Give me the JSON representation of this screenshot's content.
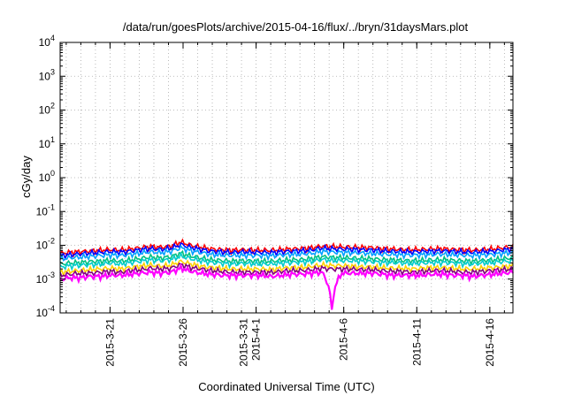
{
  "chart_data": {
    "type": "line",
    "title": "/data/run/goesPlots/archive/2015-04-16/flux/../bryn/31daysMars.plot",
    "xlabel": "Coordinated Universal Time (UTC)",
    "ylabel": "cGy/day",
    "yscale": "log",
    "ylim": [
      0.0001,
      10000
    ],
    "xlim": [
      "2015-03-17T14:00",
      "2015-04-17T14:00"
    ],
    "grid": true,
    "y_ticks": [
      {
        "base": "10",
        "exp": "-4"
      },
      {
        "base": "10",
        "exp": "-3"
      },
      {
        "base": "10",
        "exp": "-2"
      },
      {
        "base": "10",
        "exp": "-1"
      },
      {
        "base": "10",
        "exp": "0"
      },
      {
        "base": "10",
        "exp": "1"
      },
      {
        "base": "10",
        "exp": "2"
      },
      {
        "base": "10",
        "exp": "3"
      },
      {
        "base": "10",
        "exp": "4"
      }
    ],
    "x_ticks": [
      {
        "date": "2015-03-21",
        "lines": [
          "2015-3-21"
        ]
      },
      {
        "date": "2015-03-26",
        "lines": [
          "2015-3-26"
        ]
      },
      {
        "date": "2015-03-31",
        "lines": [
          "2015-3-31",
          "2015-4-1"
        ]
      },
      {
        "date": "2015-04-06",
        "lines": [
          "2015-4-6"
        ]
      },
      {
        "date": "2015-04-11",
        "lines": [
          "2015-4-11"
        ]
      },
      {
        "date": "2015-04-16",
        "lines": [
          "2015-4-16"
        ]
      }
    ],
    "series": [
      {
        "color": "#ff0000",
        "values": [
          0.0058,
          0.0062,
          0.0065,
          0.0068,
          0.0072,
          0.0075,
          0.0072,
          0.0078,
          0.0085,
          0.0092,
          0.0088,
          0.0095,
          0.0125,
          0.01,
          0.0088,
          0.0078,
          0.0075,
          0.0072,
          0.0074,
          0.0073,
          0.0072,
          0.0071,
          0.0075,
          0.0078,
          0.008,
          0.0085,
          0.0095,
          0.0092,
          0.009,
          0.0088,
          0.0086,
          0.0085,
          0.008,
          0.0078,
          0.0076,
          0.0074,
          0.0076,
          0.0078,
          0.008,
          0.0076,
          0.0074,
          0.0072,
          0.0075,
          0.0078,
          0.0085,
          0.009
        ]
      },
      {
        "color": "#0000ff",
        "values": [
          0.005,
          0.0053,
          0.0056,
          0.0059,
          0.0062,
          0.0065,
          0.0063,
          0.0068,
          0.0074,
          0.008,
          0.0076,
          0.0082,
          0.0105,
          0.0086,
          0.0076,
          0.0067,
          0.0065,
          0.0062,
          0.0064,
          0.0063,
          0.0062,
          0.0061,
          0.0065,
          0.0067,
          0.0069,
          0.0073,
          0.0082,
          0.0079,
          0.0077,
          0.0076,
          0.0074,
          0.0073,
          0.0069,
          0.0067,
          0.0065,
          0.0064,
          0.0066,
          0.0067,
          0.0069,
          0.0066,
          0.0064,
          0.0062,
          0.0065,
          0.0067,
          0.0073,
          0.0078
        ]
      },
      {
        "color": "#00a0ff",
        "values": [
          0.004,
          0.0043,
          0.0045,
          0.0047,
          0.005,
          0.0052,
          0.005,
          0.0054,
          0.0059,
          0.0064,
          0.0061,
          0.0066,
          0.0084,
          0.0069,
          0.0061,
          0.0054,
          0.0052,
          0.005,
          0.0051,
          0.005,
          0.005,
          0.0049,
          0.0052,
          0.0054,
          0.0055,
          0.0058,
          0.0066,
          0.0063,
          0.0062,
          0.0061,
          0.0059,
          0.0058,
          0.0055,
          0.0054,
          0.0052,
          0.0051,
          0.0053,
          0.0054,
          0.0055,
          0.0053,
          0.0051,
          0.005,
          0.0052,
          0.0054,
          0.0058,
          0.0062
        ]
      },
      {
        "color": "#00c080",
        "values": [
          0.0028,
          0.003,
          0.0031,
          0.0033,
          0.0034,
          0.0036,
          0.0034,
          0.0037,
          0.0041,
          0.0045,
          0.0042,
          0.0046,
          0.0058,
          0.0048,
          0.0042,
          0.0037,
          0.0036,
          0.0034,
          0.0035,
          0.0035,
          0.0034,
          0.0034,
          0.0036,
          0.0037,
          0.0038,
          0.0041,
          0.0046,
          0.0044,
          0.0043,
          0.0042,
          0.0041,
          0.004,
          0.0038,
          0.0037,
          0.0036,
          0.0035,
          0.0036,
          0.0037,
          0.0038,
          0.0036,
          0.0035,
          0.0034,
          0.0036,
          0.0037,
          0.004,
          0.0043
        ]
      },
      {
        "color": "#00cccc",
        "values": [
          0.0023,
          0.0025,
          0.0026,
          0.0027,
          0.0028,
          0.003,
          0.0028,
          0.0031,
          0.0034,
          0.0037,
          0.0035,
          0.0038,
          0.0048,
          0.004,
          0.0035,
          0.0031,
          0.003,
          0.0028,
          0.0029,
          0.0029,
          0.0028,
          0.0028,
          0.003,
          0.0031,
          0.0032,
          0.0034,
          0.0038,
          0.0036,
          0.0035,
          0.0035,
          0.0034,
          0.0033,
          0.0031,
          0.0031,
          0.003,
          0.0029,
          0.003,
          0.0031,
          0.0031,
          0.003,
          0.0029,
          0.0028,
          0.003,
          0.0031,
          0.0033,
          0.0035
        ]
      },
      {
        "color": "#ffd000",
        "values": [
          0.0016,
          0.0017,
          0.0018,
          0.0019,
          0.002,
          0.0021,
          0.002,
          0.0022,
          0.0024,
          0.0026,
          0.0024,
          0.0026,
          0.0033,
          0.0028,
          0.0024,
          0.0022,
          0.0021,
          0.002,
          0.002,
          0.002,
          0.002,
          0.0019,
          0.0021,
          0.0022,
          0.0022,
          0.0024,
          0.0026,
          0.0025,
          0.0025,
          0.0024,
          0.0023,
          0.0023,
          0.0022,
          0.0021,
          0.0021,
          0.002,
          0.0021,
          0.0022,
          0.0022,
          0.0021,
          0.002,
          0.002,
          0.0021,
          0.0022,
          0.0023,
          0.0025
        ]
      },
      {
        "color": "#800080",
        "values": [
          0.0013,
          0.0014,
          0.0015,
          0.0015,
          0.0016,
          0.0017,
          0.0016,
          0.0018,
          0.0019,
          0.0021,
          0.002,
          0.0021,
          0.0027,
          0.0022,
          0.002,
          0.0018,
          0.0017,
          0.0016,
          0.0016,
          0.0016,
          0.0016,
          0.0016,
          0.0017,
          0.0018,
          0.0018,
          0.0019,
          0.0021,
          0.002,
          0.002,
          0.002,
          0.0019,
          0.0019,
          0.0018,
          0.0017,
          0.0017,
          0.0016,
          0.0017,
          0.0018,
          0.0018,
          0.0017,
          0.0016,
          0.0016,
          0.0017,
          0.0018,
          0.0019,
          0.002
        ]
      },
      {
        "color": "#ff00ff",
        "values": [
          0.001,
          0.0011,
          0.0011,
          0.0012,
          0.0012,
          0.0013,
          0.0013,
          0.0014,
          0.0015,
          0.0016,
          0.0015,
          0.0016,
          0.0021,
          0.0017,
          0.0015,
          0.0014,
          0.0013,
          0.0013,
          0.0013,
          0.0013,
          0.0013,
          0.0012,
          0.0013,
          0.0014,
          0.0014,
          0.0015,
          0.0016,
          0.00011,
          0.0015,
          0.0015,
          0.0015,
          0.0015,
          0.0014,
          0.0013,
          0.0013,
          0.0013,
          0.0013,
          0.0014,
          0.0014,
          0.0013,
          0.0013,
          0.0012,
          0.0013,
          0.0014,
          0.0015,
          0.0016
        ]
      }
    ]
  }
}
